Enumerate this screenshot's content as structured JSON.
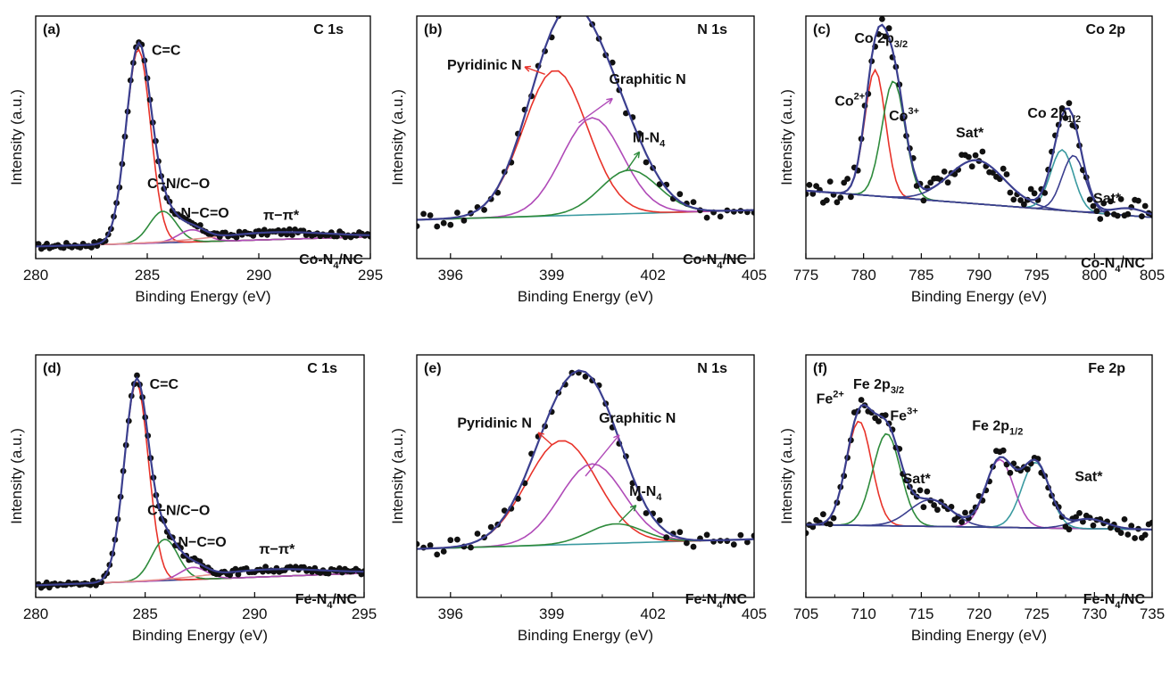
{
  "chart_data": [
    {
      "type": "line",
      "panel": "(a)",
      "element": "C 1s",
      "sample": [
        "Co-N",
        "4",
        "/NC"
      ],
      "xlabel": "Binding Energy (eV)",
      "ylabel": "Intensity (a.u.)",
      "xlim": [
        280,
        295
      ],
      "xticks": [
        280,
        285,
        290,
        295
      ],
      "xstep": 0.125,
      "baseline": [
        0.05,
        0.09
      ],
      "peaks": [
        {
          "label": "C=C",
          "center": 284.6,
          "height": 0.8,
          "width": 0.55,
          "color": "#e8332a"
        },
        {
          "label": "C−N/C−O",
          "center": 285.7,
          "height": 0.13,
          "width": 0.6,
          "color": "#2e8b3c"
        },
        {
          "label": "N−C=O",
          "center": 287.0,
          "height": 0.05,
          "width": 0.6,
          "color": "#b04bb8"
        },
        {
          "label": "π−π*",
          "center": 290.6,
          "height": 0.03,
          "width": 2.5,
          "color": "#e89090"
        }
      ],
      "annotations": [
        {
          "parts": [
            "C=C"
          ],
          "x": 285.2,
          "y": 0.84
        },
        {
          "parts": [
            "C−N/C−O"
          ],
          "x": 285.0,
          "y": 0.29
        },
        {
          "parts": [
            "N−C=O"
          ],
          "x": 286.5,
          "y": 0.17
        },
        {
          "parts": [
            "π−π*"
          ],
          "x": 290.2,
          "y": 0.16
        }
      ],
      "envelope_color": "#3b3f8f",
      "baseline_color": "#3b3f8f"
    },
    {
      "type": "line",
      "panel": "(b)",
      "element": "N 1s",
      "sample": [
        "Co-N",
        "4",
        "/NC"
      ],
      "xlabel": "Binding Energy (eV)",
      "ylabel": "Intensity (a.u.)",
      "xlim": [
        395,
        405
      ],
      "xticks": [
        396,
        399,
        402,
        405
      ],
      "xstep": 0.2,
      "baseline": [
        0.16,
        0.2
      ],
      "peaks": [
        {
          "label": "Pyridinic N",
          "center": 399.1,
          "height": 0.6,
          "width": 0.95,
          "color": "#e8332a"
        },
        {
          "label": "Graphitic N",
          "center": 400.2,
          "height": 0.4,
          "width": 0.9,
          "color": "#b04bb8"
        },
        {
          "label": "M-N4",
          "center": 401.3,
          "height": 0.18,
          "width": 0.85,
          "color": "#2e8b3c"
        }
      ],
      "annotations": [
        {
          "parts": [
            "Pyridinic N"
          ],
          "x": 395.9,
          "y": 0.78
        },
        {
          "parts": [
            "Graphitic N"
          ],
          "x": 400.7,
          "y": 0.72
        },
        {
          "parts": [
            "M-N",
            "4"
          ],
          "x": 401.4,
          "y": 0.48
        }
      ],
      "arrows": [
        {
          "from": [
            398.8,
            0.76
          ],
          "to": [
            398.2,
            0.79
          ],
          "color": "#e8332a"
        },
        {
          "from": [
            399.8,
            0.56
          ],
          "to": [
            400.8,
            0.66
          ],
          "color": "#b04bb8"
        },
        {
          "from": [
            401.2,
            0.36
          ],
          "to": [
            401.6,
            0.44
          ],
          "color": "#2e8b3c"
        }
      ],
      "envelope_color": "#3b3f8f",
      "baseline_color": "#3a9aa0"
    },
    {
      "type": "line",
      "panel": "(c)",
      "element": "Co 2p",
      "sample": [
        "Co-N",
        "4",
        "/NC"
      ],
      "xlabel": "Binding Energy (eV)",
      "ylabel": "Intensity (a.u.)",
      "xlim": [
        775,
        805
      ],
      "xticks": [
        775,
        780,
        785,
        790,
        795,
        800,
        805
      ],
      "xstep": 0.3,
      "baseline": [
        0.28,
        0.17
      ],
      "peaks": [
        {
          "label": "Co2+",
          "center": 781.0,
          "height": 0.52,
          "width": 0.9,
          "color": "#e8332a"
        },
        {
          "label": "Co3+",
          "center": 782.6,
          "height": 0.48,
          "width": 1.0,
          "color": "#2e8b3c"
        },
        {
          "label": "Sat*",
          "center": 789.8,
          "height": 0.18,
          "width": 2.4,
          "color": "#3b3f8f"
        },
        {
          "label": "Co 2p1/2 a",
          "center": 797.2,
          "height": 0.25,
          "width": 1.0,
          "color": "#3a9aa0"
        },
        {
          "label": "Co 2p1/2 b",
          "center": 798.2,
          "height": 0.23,
          "width": 1.0,
          "color": "#3b3f8f"
        },
        {
          "label": "Sat*",
          "center": 803.0,
          "height": 0.03,
          "width": 1.5,
          "color": "#3b3f8f"
        }
      ],
      "annotations": [
        {
          "parts": [
            "Co 2p",
            "3/2"
          ],
          "x": 779.2,
          "y": 0.89
        },
        {
          "parts": [
            "Co",
            "2+"
          ],
          "x": 777.5,
          "y": 0.63
        },
        {
          "parts": [
            "Co",
            "3+"
          ],
          "x": 782.2,
          "y": 0.57
        },
        {
          "parts": [
            "Sat*"
          ],
          "x": 788.0,
          "y": 0.5
        },
        {
          "parts": [
            "Co 2p",
            "1/2"
          ],
          "x": 794.2,
          "y": 0.58
        },
        {
          "parts": [
            "Sat*"
          ],
          "x": 799.9,
          "y": 0.23
        }
      ],
      "envelope_color": "#3b3f8f",
      "baseline_color": "#a09050"
    },
    {
      "type": "line",
      "panel": "(d)",
      "element": "C 1s",
      "sample": [
        "Fe-N",
        "4",
        "/NC"
      ],
      "xlabel": "Binding Energy (eV)",
      "ylabel": "Intensity (a.u.)",
      "xlim": [
        280,
        295
      ],
      "xticks": [
        280,
        285,
        290,
        295
      ],
      "xstep": 0.125,
      "baseline": [
        0.05,
        0.1
      ],
      "peaks": [
        {
          "label": "C=C",
          "center": 284.6,
          "height": 0.82,
          "width": 0.55,
          "color": "#e8332a"
        },
        {
          "label": "C−N/C−O",
          "center": 285.9,
          "height": 0.17,
          "width": 0.6,
          "color": "#2e8b3c"
        },
        {
          "label": "N−C=O",
          "center": 287.2,
          "height": 0.05,
          "width": 0.6,
          "color": "#b04bb8"
        },
        {
          "label": "π−π*",
          "center": 290.6,
          "height": 0.03,
          "width": 2.5,
          "color": "#e89090"
        }
      ],
      "annotations": [
        {
          "parts": [
            "C=C"
          ],
          "x": 285.2,
          "y": 0.86
        },
        {
          "parts": [
            "C−N/C−O"
          ],
          "x": 285.1,
          "y": 0.34
        },
        {
          "parts": [
            "N−C=O"
          ],
          "x": 286.5,
          "y": 0.21
        },
        {
          "parts": [
            "π−π*"
          ],
          "x": 290.2,
          "y": 0.18
        }
      ],
      "envelope_color": "#3b3f8f",
      "baseline_color": "#3b3f8f"
    },
    {
      "type": "line",
      "panel": "(e)",
      "element": "N 1s",
      "sample": [
        "Fe-N",
        "4",
        "/NC"
      ],
      "xlabel": "Binding Energy (eV)",
      "ylabel": "Intensity (a.u.)",
      "xlim": [
        395,
        405
      ],
      "xticks": [
        396,
        399,
        402,
        405
      ],
      "xstep": 0.2,
      "baseline": [
        0.2,
        0.24
      ],
      "peaks": [
        {
          "label": "Pyridinic N",
          "center": 399.3,
          "height": 0.43,
          "width": 1.05,
          "color": "#e8332a"
        },
        {
          "label": "Graphitic N",
          "center": 400.2,
          "height": 0.33,
          "width": 0.95,
          "color": "#b04bb8"
        },
        {
          "label": "M-N4",
          "center": 400.9,
          "height": 0.08,
          "width": 0.8,
          "color": "#2e8b3c"
        }
      ],
      "annotations": [
        {
          "parts": [
            "Pyridinic N"
          ],
          "x": 396.2,
          "y": 0.7
        },
        {
          "parts": [
            "Graphitic N"
          ],
          "x": 400.4,
          "y": 0.72
        },
        {
          "parts": [
            "M-N",
            "4"
          ],
          "x": 401.3,
          "y": 0.42
        }
      ],
      "arrows": [
        {
          "from": [
            399.0,
            0.63
          ],
          "to": [
            398.6,
            0.68
          ],
          "color": "#e8332a"
        },
        {
          "from": [
            400.0,
            0.5
          ],
          "to": [
            401.0,
            0.67
          ],
          "color": "#b04bb8"
        },
        {
          "from": [
            401.0,
            0.31
          ],
          "to": [
            401.5,
            0.38
          ],
          "color": "#2e8b3c"
        }
      ],
      "envelope_color": "#3b3f8f",
      "baseline_color": "#3a9aa0"
    },
    {
      "type": "line",
      "panel": "(f)",
      "element": "Fe 2p",
      "sample": [
        "Fe-N",
        "4",
        "/NC"
      ],
      "xlabel": "Binding Energy (eV)",
      "ylabel": "Intensity (a.u.)",
      "xlim": [
        705,
        735
      ],
      "xticks": [
        705,
        710,
        715,
        720,
        725,
        730,
        735
      ],
      "xstep": 0.3,
      "baseline": [
        0.3,
        0.28
      ],
      "peaks": [
        {
          "label": "Fe2+",
          "center": 709.6,
          "height": 0.43,
          "width": 1.1,
          "color": "#e8332a"
        },
        {
          "label": "Fe3+",
          "center": 712.0,
          "height": 0.38,
          "width": 1.2,
          "color": "#2e8b3c"
        },
        {
          "label": "Sat*",
          "center": 715.8,
          "height": 0.11,
          "width": 1.8,
          "color": "#3b3f8f"
        },
        {
          "label": "Fe 2p1/2 a",
          "center": 721.8,
          "height": 0.28,
          "width": 1.2,
          "color": "#b04bb8"
        },
        {
          "label": "Fe 2p1/2 b",
          "center": 724.9,
          "height": 0.27,
          "width": 1.2,
          "color": "#3a9aa0"
        },
        {
          "label": "Sat*",
          "center": 729.5,
          "height": 0.04,
          "width": 1.5,
          "color": "#3b3f8f"
        }
      ],
      "annotations": [
        {
          "parts": [
            "Fe 2p",
            "3/2"
          ],
          "x": 709.1,
          "y": 0.86
        },
        {
          "parts": [
            "Fe",
            "2+"
          ],
          "x": 705.9,
          "y": 0.8
        },
        {
          "parts": [
            "Fe",
            "3+"
          ],
          "x": 712.3,
          "y": 0.73
        },
        {
          "parts": [
            "Sat*"
          ],
          "x": 713.4,
          "y": 0.47
        },
        {
          "parts": [
            "Fe 2p",
            "1/2"
          ],
          "x": 719.4,
          "y": 0.69
        },
        {
          "parts": [
            "Sat*"
          ],
          "x": 728.3,
          "y": 0.48
        }
      ],
      "envelope_color": "#3b3f8f",
      "baseline_color": "#3b3f8f"
    }
  ]
}
